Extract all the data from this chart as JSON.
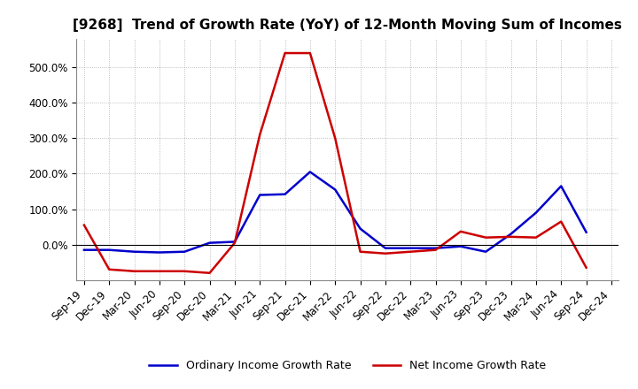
{
  "title": "[9268]  Trend of Growth Rate (YoY) of 12-Month Moving Sum of Incomes",
  "x_labels": [
    "Sep-19",
    "Dec-19",
    "Mar-20",
    "Jun-20",
    "Sep-20",
    "Dec-20",
    "Mar-21",
    "Jun-21",
    "Sep-21",
    "Dec-21",
    "Mar-22",
    "Jun-22",
    "Sep-22",
    "Dec-22",
    "Mar-23",
    "Jun-23",
    "Sep-23",
    "Dec-23",
    "Mar-24",
    "Jun-24",
    "Sep-24",
    "Dec-24"
  ],
  "ordinary_income": [
    -0.15,
    -0.15,
    -0.2,
    -0.22,
    -0.2,
    0.05,
    0.08,
    1.4,
    1.42,
    2.05,
    1.55,
    0.45,
    -0.1,
    -0.1,
    -0.1,
    -0.05,
    -0.2,
    0.3,
    0.9,
    1.65,
    0.35,
    null
  ],
  "net_income": [
    0.55,
    -0.7,
    -0.75,
    -0.75,
    -0.75,
    -0.8,
    0.05,
    3.1,
    5.4,
    5.4,
    3.0,
    -0.2,
    -0.25,
    -0.2,
    -0.15,
    0.37,
    0.2,
    0.22,
    0.2,
    0.65,
    -0.65,
    null
  ],
  "ordinary_color": "#0000cc",
  "net_color": "#cc0000",
  "background_color": "#ffffff",
  "grid_color": "#aaaaaa",
  "ylim_min": -1.0,
  "ylim_max": 5.8,
  "yticks": [
    0.0,
    1.0,
    2.0,
    3.0,
    4.0,
    5.0
  ],
  "ytick_labels": [
    "0.0%",
    "100.0%",
    "200.0%",
    "300.0%",
    "400.0%",
    "500.0%"
  ],
  "legend_ordinary": "Ordinary Income Growth Rate",
  "legend_net": "Net Income Growth Rate",
  "title_fontsize": 11,
  "tick_fontsize": 8.5,
  "line_width": 1.8
}
